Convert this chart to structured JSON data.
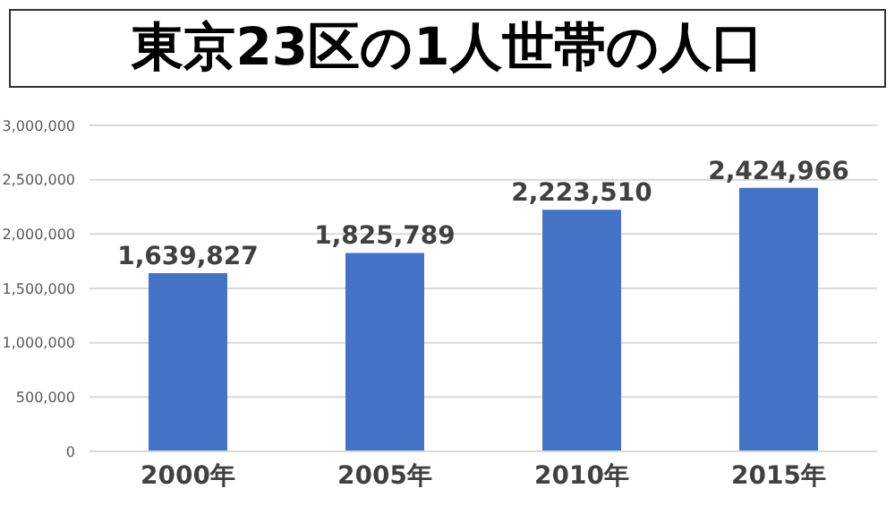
{
  "chart_data": {
    "type": "bar",
    "title": "東京23区の1人世帯の人口",
    "categories": [
      "2000年",
      "2005年",
      "2010年",
      "2015年"
    ],
    "values": [
      1639827,
      1825789,
      2223510,
      2424966
    ],
    "color": "#4472c4",
    "value_labels": [
      "1,639,827",
      "1,825,789",
      "2,223,510",
      "2,424,966"
    ],
    "ylim": [
      0,
      3000000
    ],
    "yticks": [
      0,
      {
        "value": 500000,
        "label": "500,000"
      },
      {
        "value": 1000000,
        "label": "1,000,000"
      },
      {
        "value": 1500000,
        "label": "1,500,000"
      },
      {
        "value": 2000000,
        "label": "2,000,000"
      },
      {
        "value": 2500000,
        "label": "2,500,000"
      },
      {
        "value": 3000000,
        "label": "3,000,000"
      }
    ],
    "grid": "y"
  }
}
